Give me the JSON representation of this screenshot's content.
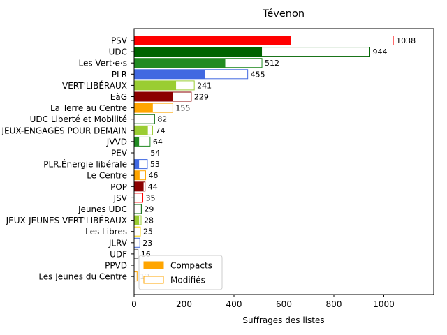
{
  "chart_data": {
    "type": "bar",
    "orientation": "horizontal",
    "stacked": "overlay",
    "title": "Tévenon",
    "xlabel": "Suffrages des listes",
    "ylabel": "",
    "xlim": [
      0,
      1200
    ],
    "xticks": [
      0,
      200,
      400,
      600,
      800,
      1000
    ],
    "grid": false,
    "legend_position": "lower-left",
    "legend": [
      {
        "label": "Compacts",
        "style": "filled",
        "color": "#FFA500"
      },
      {
        "label": "Modifiés",
        "style": "outline",
        "color": "#FFA500"
      }
    ],
    "categories": [
      {
        "name": "PSV",
        "total": 1038,
        "compact": 628,
        "color": "#FF0000"
      },
      {
        "name": "UDC",
        "total": 944,
        "compact": 512,
        "color": "#006400"
      },
      {
        "name": "Les Vert·e·s",
        "total": 512,
        "compact": 365,
        "color": "#228B22"
      },
      {
        "name": "PLR",
        "total": 455,
        "compact": 285,
        "color": "#4169E1"
      },
      {
        "name": "VERT'LIBÉRAUX",
        "total": 241,
        "compact": 168,
        "color": "#9ACD32"
      },
      {
        "name": "EàG",
        "total": 229,
        "compact": 155,
        "color": "#8B0000"
      },
      {
        "name": "La Terre au Centre",
        "total": 155,
        "compact": 75,
        "color": "#FFA500"
      },
      {
        "name": "UDC Liberté et Mobilité",
        "total": 82,
        "compact": 0,
        "color": "#006400"
      },
      {
        "name": "JEUX-ENGAGÉS POUR DEMAIN",
        "total": 74,
        "compact": 55,
        "color": "#9ACD32"
      },
      {
        "name": "JVVD",
        "total": 64,
        "compact": 20,
        "color": "#228B22"
      },
      {
        "name": "PEV",
        "total": 54,
        "compact": 0,
        "color": "#FFFFFF"
      },
      {
        "name": "PLR.Énergie libérale",
        "total": 53,
        "compact": 20,
        "color": "#4169E1"
      },
      {
        "name": "Le Centre",
        "total": 46,
        "compact": 22,
        "color": "#FFA500"
      },
      {
        "name": "POP",
        "total": 44,
        "compact": 38,
        "color": "#8B0000"
      },
      {
        "name": "JSV",
        "total": 35,
        "compact": 0,
        "color": "#FF0000"
      },
      {
        "name": "Jeunes UDC",
        "total": 29,
        "compact": 0,
        "color": "#006400"
      },
      {
        "name": "JEUX-JEUNES VERT'LIBÉRAUX",
        "total": 28,
        "compact": 20,
        "color": "#9ACD32"
      },
      {
        "name": "Les Libres",
        "total": 25,
        "compact": 0,
        "color": "#FFD700"
      },
      {
        "name": "JLRV",
        "total": 23,
        "compact": 0,
        "color": "#4169E1"
      },
      {
        "name": "UDF",
        "total": 16,
        "compact": 0,
        "color": "#808080"
      },
      {
        "name": "PPVD",
        "total": 0,
        "compact": 0,
        "color": "#FFFFFF"
      },
      {
        "name": "Les Jeunes du Centre",
        "total": 12,
        "compact": 0,
        "color": "#FFA500"
      }
    ]
  }
}
